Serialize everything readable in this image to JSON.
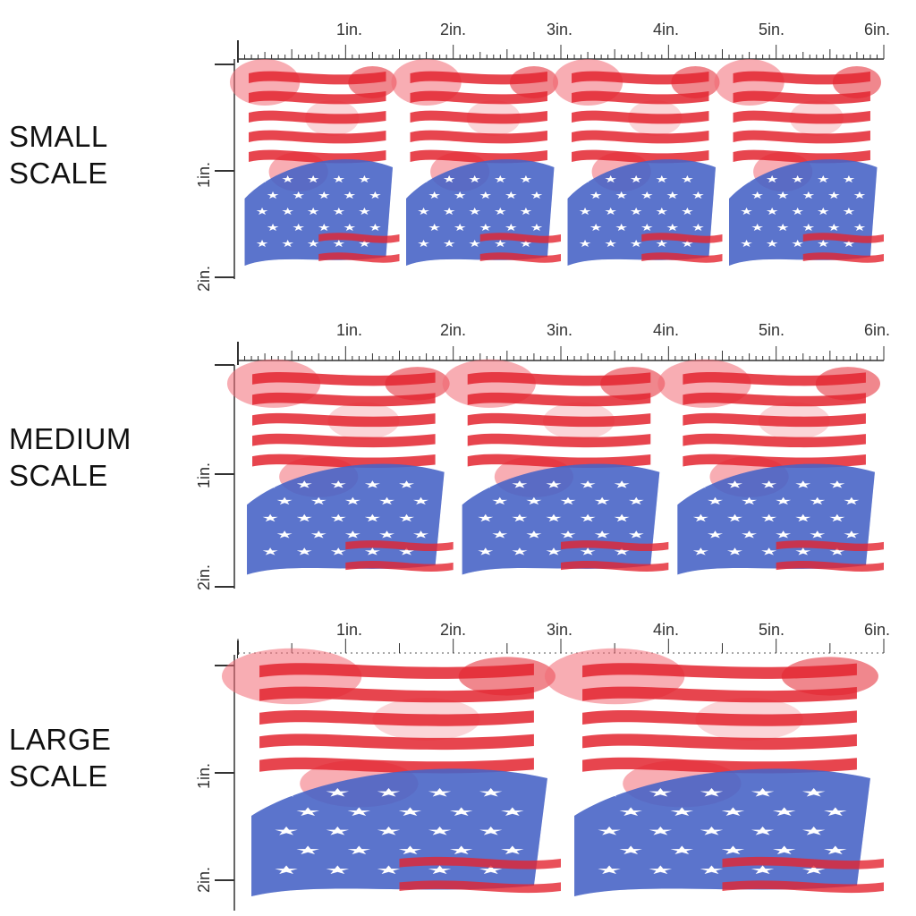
{
  "colors": {
    "red": "#e3242f",
    "red_light": "#f26a74",
    "pink": "#f7b2b8",
    "blue": "#2d48b8",
    "blue_light": "#7f9ae0",
    "white": "#ffffff",
    "ruler": "#333333"
  },
  "ruler": {
    "h_labels": [
      "1in.",
      "2in.",
      "3in.",
      "4in.",
      "5in.",
      "6in."
    ],
    "v_labels": [
      "1in.",
      "2in."
    ]
  },
  "sections": [
    {
      "id": "small",
      "line1": "SMALL",
      "line2": "SCALE",
      "pattern_repeats": 4
    },
    {
      "id": "medium",
      "line1": "MEDIUM",
      "line2": "SCALE",
      "pattern_repeats": 3
    },
    {
      "id": "large",
      "line1": "LARGE",
      "line2": "SCALE",
      "pattern_repeats": 2
    }
  ]
}
